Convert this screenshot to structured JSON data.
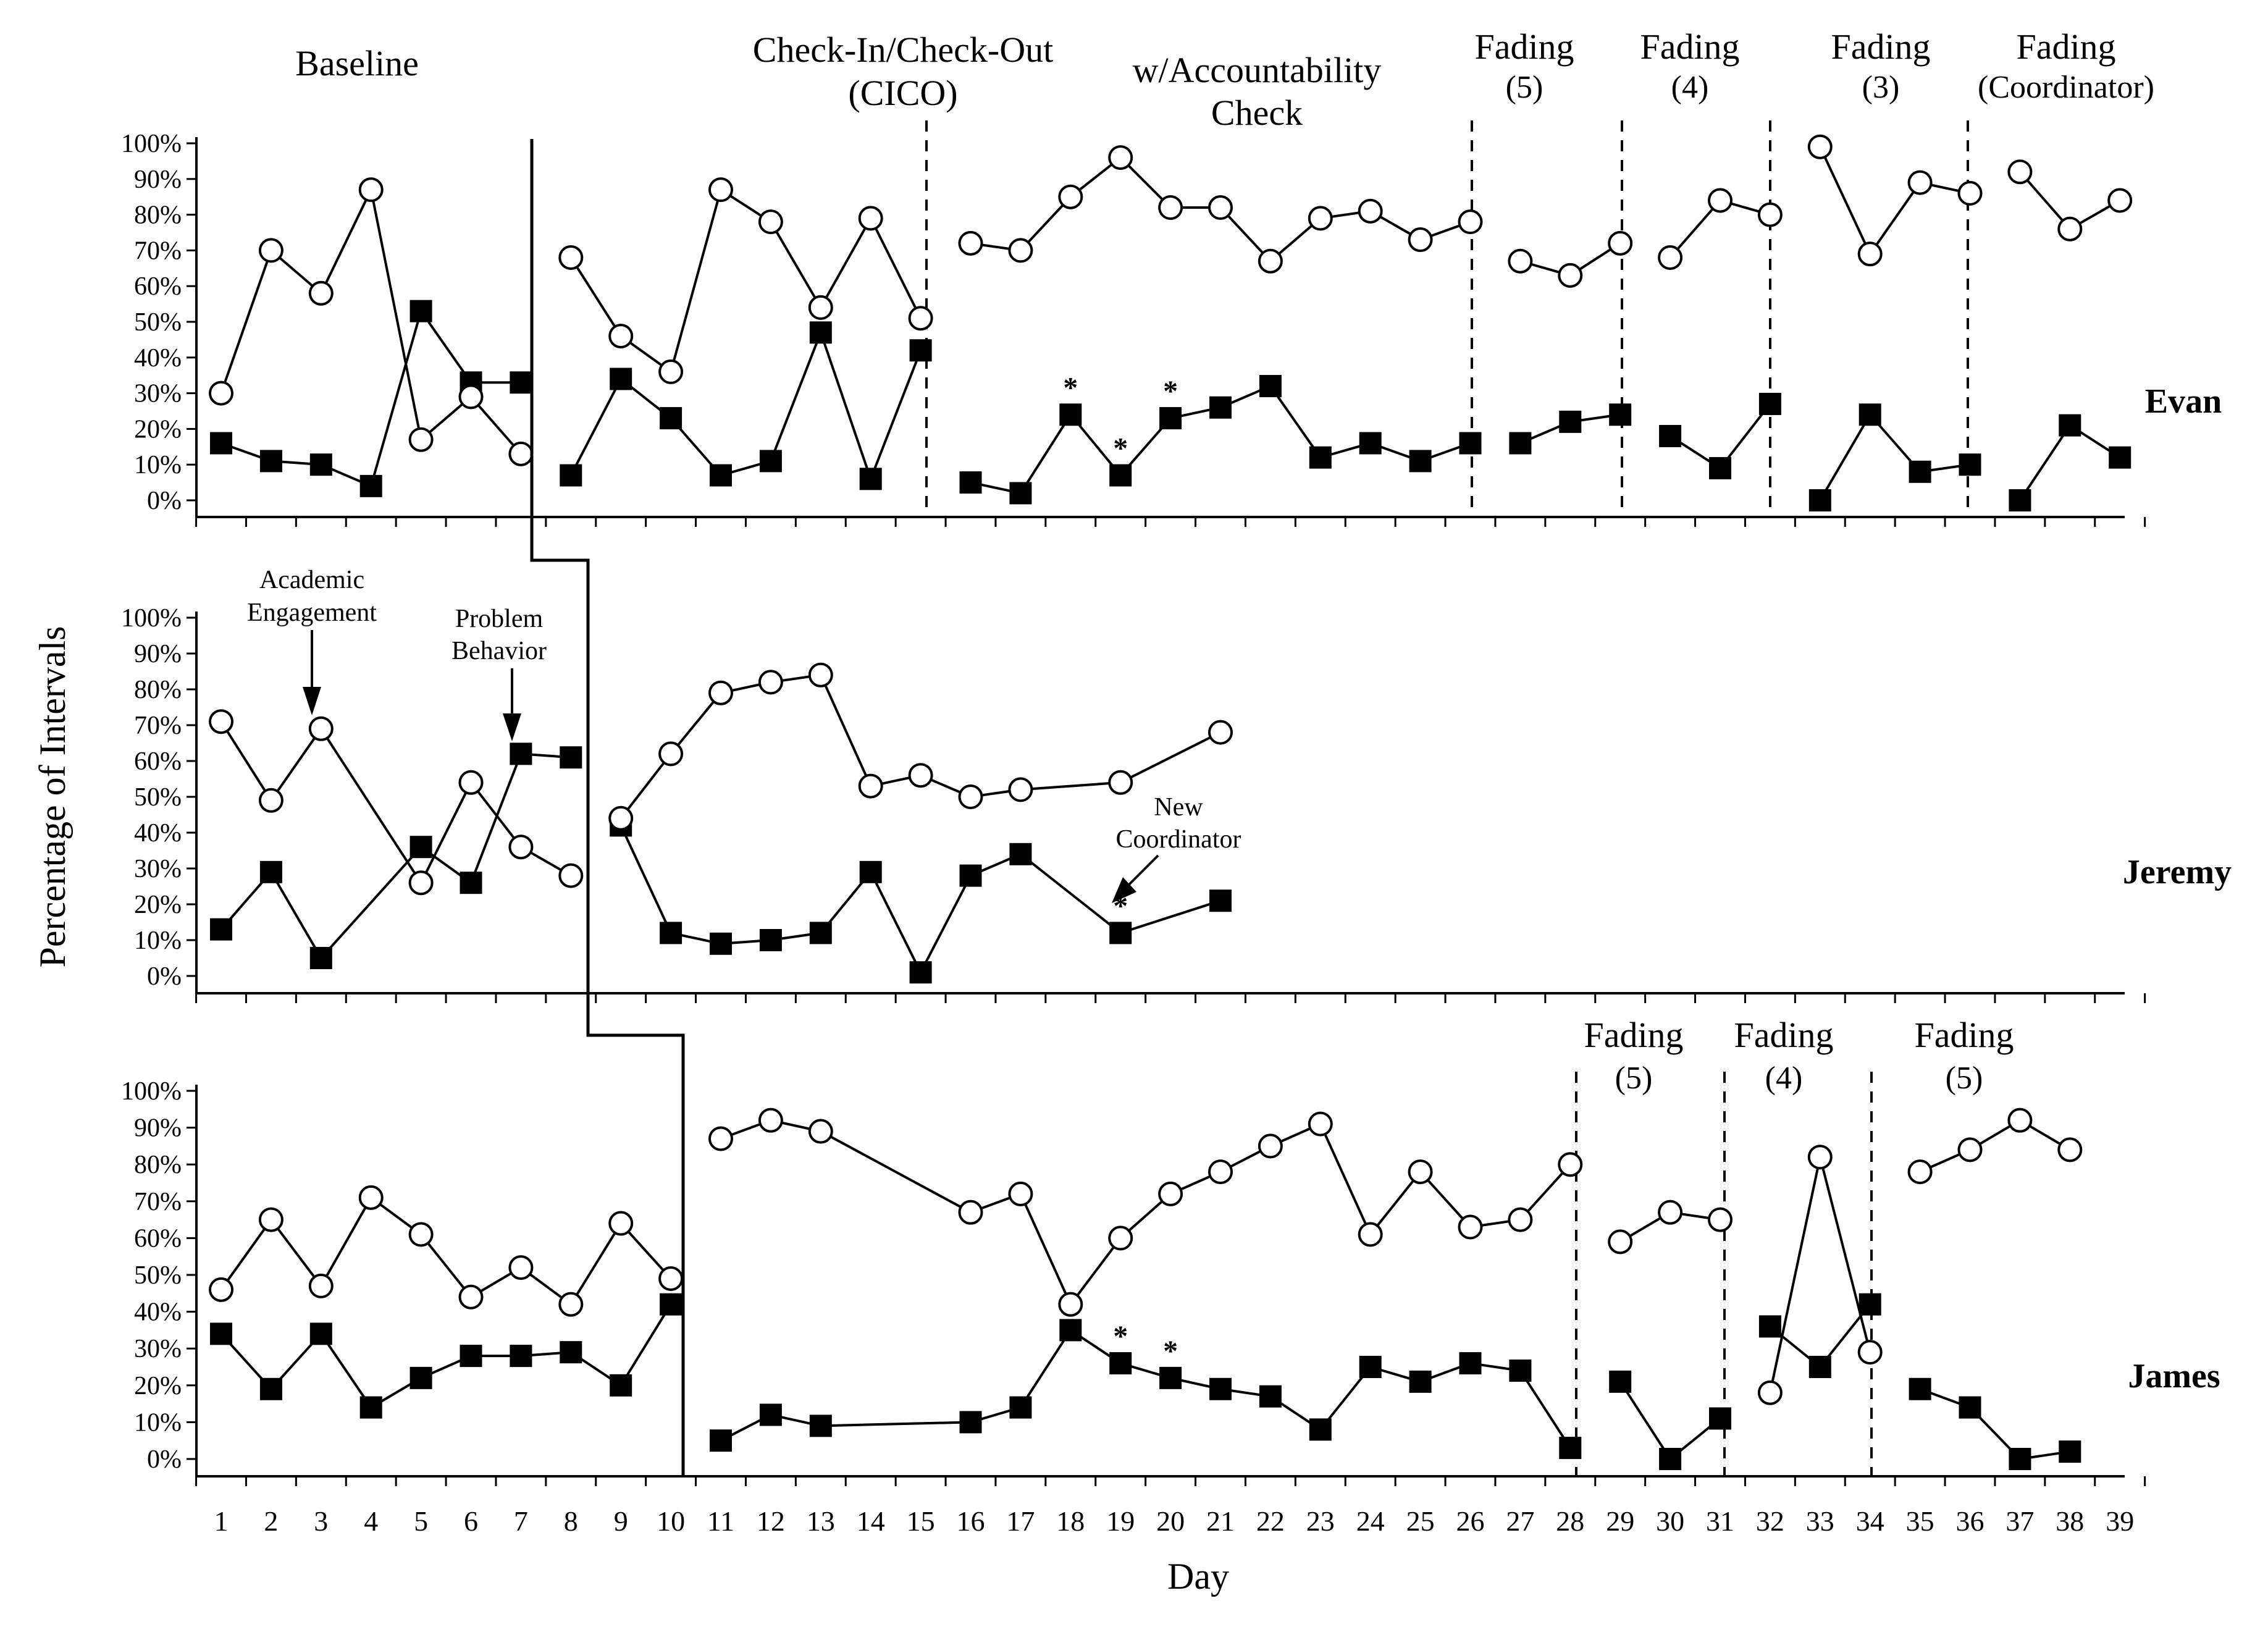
{
  "chart_data": {
    "type": "line",
    "ylabel": "Percentage of Intervals",
    "xlabel": "Day",
    "ylim": [
      0,
      100
    ],
    "x_ticks": [
      1,
      2,
      3,
      4,
      5,
      6,
      7,
      8,
      9,
      10,
      11,
      12,
      13,
      14,
      15,
      16,
      17,
      18,
      19,
      20,
      21,
      22,
      23,
      24,
      25,
      26,
      27,
      28,
      29,
      30,
      31,
      32,
      33,
      34,
      35,
      36,
      37,
      38,
      39
    ],
    "y_tick_labels": [
      "0%",
      "10%",
      "20%",
      "30%",
      "40%",
      "50%",
      "60%",
      "70%",
      "80%",
      "90%",
      "100%"
    ],
    "legend": {
      "engagement": "Academic Engagement",
      "problem": "Problem Behavior"
    },
    "top_phase_labels": {
      "baseline": "Baseline",
      "cico_line1": "Check-In/Check-Out",
      "cico_line2": "(CICO)",
      "accountability_line1": "w/Accountability",
      "accountability_line2": "Check",
      "fading_evan": [
        {
          "title": "Fading",
          "sub": "(5)"
        },
        {
          "title": "Fading",
          "sub": "(4)"
        },
        {
          "title": "Fading",
          "sub": "(3)"
        },
        {
          "title": "Fading",
          "sub": "(Coordinator)"
        }
      ],
      "fading_james": [
        {
          "title": "Fading",
          "sub": "(5)"
        },
        {
          "title": "Fading",
          "sub": "(4)"
        },
        {
          "title": "Fading",
          "sub": "(5)"
        }
      ]
    },
    "annotations": {
      "academic_engagement_line1": "Academic",
      "academic_engagement_line2": "Engagement",
      "problem_behavior_line1": "Problem",
      "problem_behavior_line2": "Behavior",
      "new_coordinator_line1": "New",
      "new_coordinator_line2": "Coordinator",
      "star": "*"
    },
    "panels": [
      {
        "participant": "Evan",
        "engagement": [
          [
            [
              1,
              30
            ],
            [
              2,
              70
            ],
            [
              3,
              58
            ],
            [
              4,
              87
            ],
            [
              5,
              17
            ],
            [
              6,
              29
            ],
            [
              7,
              13
            ]
          ],
          [
            [
              8,
              68
            ],
            [
              9,
              46
            ],
            [
              10,
              36
            ],
            [
              11,
              87
            ],
            [
              12,
              78
            ],
            [
              13,
              54
            ],
            [
              14,
              79
            ],
            [
              15,
              51
            ]
          ],
          [
            [
              16,
              72
            ],
            [
              17,
              70
            ],
            [
              18,
              85
            ],
            [
              19,
              96
            ],
            [
              20,
              82
            ],
            [
              21,
              82
            ],
            [
              22,
              67
            ],
            [
              23,
              79
            ],
            [
              24,
              81
            ],
            [
              25,
              73
            ],
            [
              26,
              78
            ]
          ],
          [
            [
              27,
              67
            ],
            [
              28,
              63
            ],
            [
              29,
              72
            ]
          ],
          [
            [
              30,
              68
            ],
            [
              31,
              84
            ],
            [
              32,
              80
            ]
          ],
          [
            [
              33,
              99
            ],
            [
              34,
              69
            ],
            [
              35,
              89
            ],
            [
              36,
              86
            ]
          ],
          [
            [
              37,
              92
            ],
            [
              38,
              76
            ],
            [
              39,
              84
            ]
          ]
        ],
        "problem": [
          [
            [
              1,
              16
            ],
            [
              2,
              11
            ],
            [
              3,
              10
            ],
            [
              4,
              4
            ],
            [
              5,
              53
            ],
            [
              6,
              33
            ],
            [
              7,
              33
            ]
          ],
          [
            [
              8,
              7
            ],
            [
              9,
              34
            ],
            [
              10,
              23
            ],
            [
              11,
              7
            ],
            [
              12,
              11
            ],
            [
              13,
              47
            ],
            [
              14,
              6
            ],
            [
              15,
              42
            ]
          ],
          [
            [
              16,
              5
            ],
            [
              17,
              2
            ],
            [
              18,
              24
            ],
            [
              19,
              7
            ],
            [
              20,
              23
            ],
            [
              21,
              26
            ],
            [
              22,
              32
            ],
            [
              23,
              12
            ],
            [
              24,
              16
            ],
            [
              25,
              11
            ],
            [
              26,
              16
            ]
          ],
          [
            [
              27,
              16
            ],
            [
              28,
              22
            ],
            [
              29,
              24
            ]
          ],
          [
            [
              30,
              18
            ],
            [
              31,
              9
            ],
            [
              32,
              27
            ]
          ],
          [
            [
              33,
              0
            ],
            [
              34,
              24
            ],
            [
              35,
              8
            ],
            [
              36,
              10
            ]
          ],
          [
            [
              37,
              0
            ],
            [
              38,
              21
            ],
            [
              39,
              12
            ]
          ]
        ],
        "starred_days": [
          18,
          19,
          20
        ]
      },
      {
        "participant": "Jeremy",
        "engagement": [
          [
            [
              1,
              71
            ],
            [
              2,
              49
            ],
            [
              3,
              69
            ],
            [
              5,
              26
            ],
            [
              6,
              54
            ],
            [
              7,
              36
            ],
            [
              8,
              28
            ]
          ],
          [
            [
              9,
              44
            ],
            [
              10,
              62
            ],
            [
              11,
              79
            ],
            [
              12,
              82
            ],
            [
              13,
              84
            ],
            [
              14,
              53
            ],
            [
              15,
              56
            ],
            [
              16,
              50
            ],
            [
              17,
              52
            ],
            [
              19,
              54
            ],
            [
              21,
              68
            ]
          ]
        ],
        "problem": [
          [
            [
              1,
              13
            ],
            [
              2,
              29
            ],
            [
              3,
              5
            ],
            [
              5,
              36
            ],
            [
              6,
              26
            ],
            [
              7,
              62
            ],
            [
              8,
              61
            ]
          ],
          [
            [
              9,
              42
            ],
            [
              10,
              12
            ],
            [
              11,
              9
            ],
            [
              12,
              10
            ],
            [
              13,
              12
            ],
            [
              14,
              29
            ],
            [
              15,
              1
            ],
            [
              16,
              28
            ],
            [
              17,
              34
            ],
            [
              19,
              12
            ],
            [
              21,
              21
            ]
          ]
        ],
        "starred_days": [
          19
        ]
      },
      {
        "participant": "James",
        "engagement": [
          [
            [
              1,
              46
            ],
            [
              2,
              65
            ],
            [
              3,
              47
            ],
            [
              4,
              71
            ],
            [
              5,
              61
            ],
            [
              6,
              44
            ],
            [
              7,
              52
            ],
            [
              8,
              42
            ],
            [
              9,
              64
            ],
            [
              10,
              49
            ]
          ],
          [
            [
              11,
              87
            ],
            [
              12,
              92
            ],
            [
              13,
              89
            ],
            [
              16,
              67
            ],
            [
              17,
              72
            ],
            [
              18,
              42
            ],
            [
              19,
              60
            ],
            [
              20,
              72
            ],
            [
              21,
              78
            ],
            [
              22,
              85
            ],
            [
              23,
              91
            ],
            [
              24,
              61
            ],
            [
              25,
              78
            ],
            [
              26,
              63
            ],
            [
              27,
              65
            ],
            [
              28,
              80
            ]
          ],
          [
            [
              29,
              59
            ],
            [
              30,
              67
            ],
            [
              31,
              65
            ]
          ],
          [
            [
              32,
              18
            ],
            [
              33,
              82
            ],
            [
              34,
              29
            ]
          ],
          [
            [
              35,
              78
            ],
            [
              36,
              84
            ],
            [
              37,
              92
            ],
            [
              38,
              84
            ]
          ]
        ],
        "problem": [
          [
            [
              1,
              34
            ],
            [
              2,
              19
            ],
            [
              3,
              34
            ],
            [
              4,
              14
            ],
            [
              5,
              22
            ],
            [
              6,
              28
            ],
            [
              7,
              28
            ],
            [
              8,
              29
            ],
            [
              9,
              20
            ],
            [
              10,
              42
            ]
          ],
          [
            [
              11,
              5
            ],
            [
              12,
              12
            ],
            [
              13,
              9
            ],
            [
              16,
              10
            ],
            [
              17,
              14
            ],
            [
              18,
              35
            ],
            [
              19,
              26
            ],
            [
              20,
              22
            ],
            [
              21,
              19
            ],
            [
              22,
              17
            ],
            [
              23,
              8
            ],
            [
              24,
              25
            ],
            [
              25,
              21
            ],
            [
              26,
              26
            ],
            [
              27,
              24
            ],
            [
              28,
              3
            ]
          ],
          [
            [
              29,
              21
            ],
            [
              30,
              0
            ],
            [
              31,
              11
            ]
          ],
          [
            [
              32,
              36
            ],
            [
              33,
              25
            ],
            [
              34,
              42
            ]
          ],
          [
            [
              35,
              19
            ],
            [
              36,
              14
            ],
            [
              37,
              0
            ],
            [
              38,
              2
            ]
          ]
        ],
        "starred_days": [
          19,
          20
        ]
      }
    ]
  }
}
